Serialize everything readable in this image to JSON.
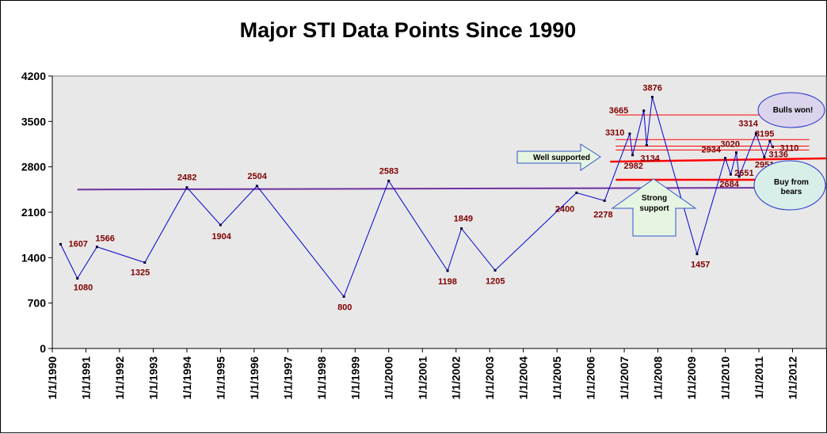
{
  "chart_data": {
    "type": "line",
    "title": "Major STI Data Points Since 1990",
    "xlabel": "",
    "ylabel": "",
    "ylim": [
      0,
      4200
    ],
    "yticks": [
      0,
      700,
      1400,
      2100,
      2800,
      3500,
      4200
    ],
    "xticks": [
      "1/1/1990",
      "1/1/1991",
      "1/1/1992",
      "1/1/1993",
      "1/1/1994",
      "1/1/1995",
      "1/1/1996",
      "1/1/1997",
      "1/1/1998",
      "1/1/1999",
      "1/1/2000",
      "1/1/2001",
      "1/1/2002",
      "1/1/2003",
      "1/1/2004",
      "1/1/2005",
      "1/1/2006",
      "1/1/2007",
      "1/1/2008",
      "1/1/2009",
      "1/1/2010",
      "1/1/2011",
      "1/1/2012"
    ],
    "grid": false,
    "series": [
      {
        "color": "#0000cc",
        "points": [
          {
            "x": "1990-04-01",
            "y": 1607,
            "label": "1607"
          },
          {
            "x": "1990-10-01",
            "y": 1080,
            "label": "1080"
          },
          {
            "x": "1991-05-01",
            "y": 1566,
            "label": "1566"
          },
          {
            "x": "1992-10-01",
            "y": 1325,
            "label": "1325"
          },
          {
            "x": "1994-01-01",
            "y": 2482,
            "label": "2482"
          },
          {
            "x": "1995-01-01",
            "y": 1904,
            "label": "1904"
          },
          {
            "x": "1996-02-01",
            "y": 2504,
            "label": "2504"
          },
          {
            "x": "1998-09-01",
            "y": 800,
            "label": "800"
          },
          {
            "x": "2000-01-01",
            "y": 2583,
            "label": "2583"
          },
          {
            "x": "2001-10-01",
            "y": 1198,
            "label": "1198"
          },
          {
            "x": "2002-03-01",
            "y": 1849,
            "label": "1849"
          },
          {
            "x": "2003-03-01",
            "y": 1205,
            "label": "1205"
          },
          {
            "x": "2005-08-01",
            "y": 2400,
            "label": "2400"
          },
          {
            "x": "2006-06-01",
            "y": 2278,
            "label": "2278"
          },
          {
            "x": "2007-03-01",
            "y": 3310,
            "label": "3310"
          },
          {
            "x": "2007-04-01",
            "y": 2982,
            "label": "2982"
          },
          {
            "x": "2007-08-01",
            "y": 3665,
            "label": "3665"
          },
          {
            "x": "2007-09-01",
            "y": 3134,
            "label": "3134"
          },
          {
            "x": "2007-11-01",
            "y": 3876,
            "label": "3876"
          },
          {
            "x": "2009-03-01",
            "y": 1457,
            "label": "1457"
          },
          {
            "x": "2010-01-01",
            "y": 2934,
            "label": "2934"
          },
          {
            "x": "2010-03-01",
            "y": 2684,
            "label": "2684"
          },
          {
            "x": "2010-05-01",
            "y": 3020,
            "label": "3020"
          },
          {
            "x": "2010-06-01",
            "y": 2651,
            "label": "2651"
          },
          {
            "x": "2010-12-01",
            "y": 3314,
            "label": "3314"
          },
          {
            "x": "2011-03-01",
            "y": 2951,
            "label": "2951"
          },
          {
            "x": "2011-05-01",
            "y": 3195,
            "label": "3195"
          },
          {
            "x": "2011-06-01",
            "y": 3110,
            "label": "3110"
          }
        ]
      }
    ],
    "extra_labels": [
      {
        "text": "3136",
        "x": "2011-04-01",
        "y": 3000
      }
    ],
    "reference_lines": [
      {
        "x1": "1990-10-01",
        "y1": 2450,
        "x2": "2012-12-31",
        "y2": 2480,
        "color": "#7030a0",
        "kind": "trend"
      },
      {
        "x1": "2006-08-01",
        "y1": 2880,
        "x2": "2012-12-31",
        "y2": 2930,
        "color": "#ff0000",
        "kind": "support-thick"
      },
      {
        "x1": "2006-10-01",
        "y1": 2600,
        "x2": "2012-10-01",
        "y2": 2600,
        "color": "#ff0000",
        "kind": "support-thick"
      },
      {
        "x1": "2006-10-01",
        "y1": 3600,
        "x2": "2012-07-01",
        "y2": 3600,
        "color": "#ff0000",
        "kind": "thin"
      },
      {
        "x1": "2006-10-01",
        "y1": 3220,
        "x2": "2012-07-01",
        "y2": 3220,
        "color": "#ff0000",
        "kind": "thin"
      },
      {
        "x1": "2006-10-01",
        "y1": 3120,
        "x2": "2012-07-01",
        "y2": 3120,
        "color": "#ff0000",
        "kind": "thin"
      },
      {
        "x1": "2006-10-01",
        "y1": 3060,
        "x2": "2012-07-01",
        "y2": 3060,
        "color": "#ff0000",
        "kind": "thin"
      }
    ],
    "annotations": {
      "well_supported": "Well supported",
      "strong_support": "Strong support",
      "strong_support_line1": "Strong",
      "strong_support_line2": "support",
      "bulls_won": "Bulls won!",
      "buy_from_bears_line1": "Buy from",
      "buy_from_bears_line2": "bears"
    },
    "colors": {
      "plot_background": "#e8e8e8",
      "series": "#0000cc",
      "data_label": "#800000",
      "arrow_fill": "#e6f5e1",
      "arrow_stroke": "#3355cc",
      "bulls_fill": "#dcd4ec",
      "bears_fill": "#d8eee8",
      "ellipse_stroke": "#2233cc"
    }
  }
}
